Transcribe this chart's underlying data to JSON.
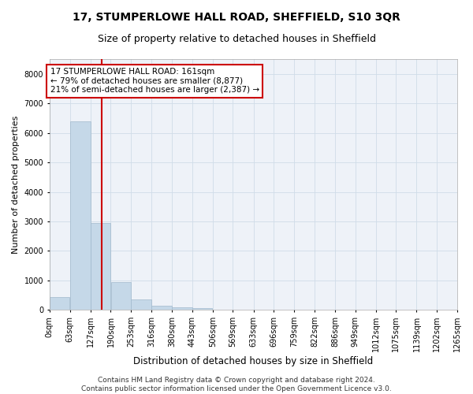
{
  "title": "17, STUMPERLOWE HALL ROAD, SHEFFIELD, S10 3QR",
  "subtitle": "Size of property relative to detached houses in Sheffield",
  "xlabel": "Distribution of detached houses by size in Sheffield",
  "ylabel": "Number of detached properties",
  "footer_line1": "Contains HM Land Registry data © Crown copyright and database right 2024.",
  "footer_line2": "Contains public sector information licensed under the Open Government Licence v3.0.",
  "annotation_line1": "17 STUMPERLOWE HALL ROAD: 161sqm",
  "annotation_line2": "← 79% of detached houses are smaller (8,877)",
  "annotation_line3": "21% of semi-detached houses are larger (2,387) →",
  "property_size": 161,
  "bin_edges": [
    0,
    63,
    127,
    190,
    253,
    316,
    380,
    443,
    506,
    569,
    633,
    696,
    759,
    822,
    886,
    949,
    1012,
    1075,
    1139,
    1202,
    1265
  ],
  "bar_heights": [
    430,
    6380,
    2950,
    950,
    350,
    150,
    100,
    60,
    0,
    0,
    0,
    0,
    0,
    0,
    0,
    0,
    0,
    0,
    0,
    0
  ],
  "bar_color": "#c5d8e8",
  "bar_edge_color": "#a0b8cc",
  "vline_color": "#cc0000",
  "vline_x": 161,
  "ylim": [
    0,
    8500
  ],
  "yticks": [
    0,
    1000,
    2000,
    3000,
    4000,
    5000,
    6000,
    7000,
    8000
  ],
  "grid_color": "#d0dce8",
  "background_color": "#eef2f8",
  "title_fontsize": 10,
  "subtitle_fontsize": 9,
  "axis_label_fontsize": 8,
  "tick_fontsize": 7,
  "annotation_fontsize": 7.5,
  "footer_fontsize": 6.5
}
